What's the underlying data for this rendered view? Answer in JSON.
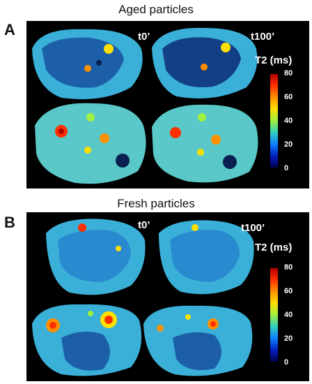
{
  "panels": [
    {
      "letter": "A",
      "title": "Aged particles",
      "time_labels": [
        "t0’",
        "t100’"
      ],
      "colorbar": {
        "title": "T2 (ms)",
        "ticks": [
          "80",
          "60",
          "40",
          "20",
          "0"
        ]
      }
    },
    {
      "letter": "B",
      "title": "Fresh particles",
      "time_labels": [
        "t0’",
        "t100’"
      ],
      "colorbar": {
        "title": "T2 (ms)",
        "ticks": [
          "80",
          "60",
          "40",
          "20",
          "0"
        ]
      }
    }
  ],
  "colors": {
    "background": "#000000",
    "tissue": "#3ab0d8",
    "tissue_dark": "#1c5fa8",
    "hot": "#ff3000",
    "warm": "#ffe000"
  }
}
